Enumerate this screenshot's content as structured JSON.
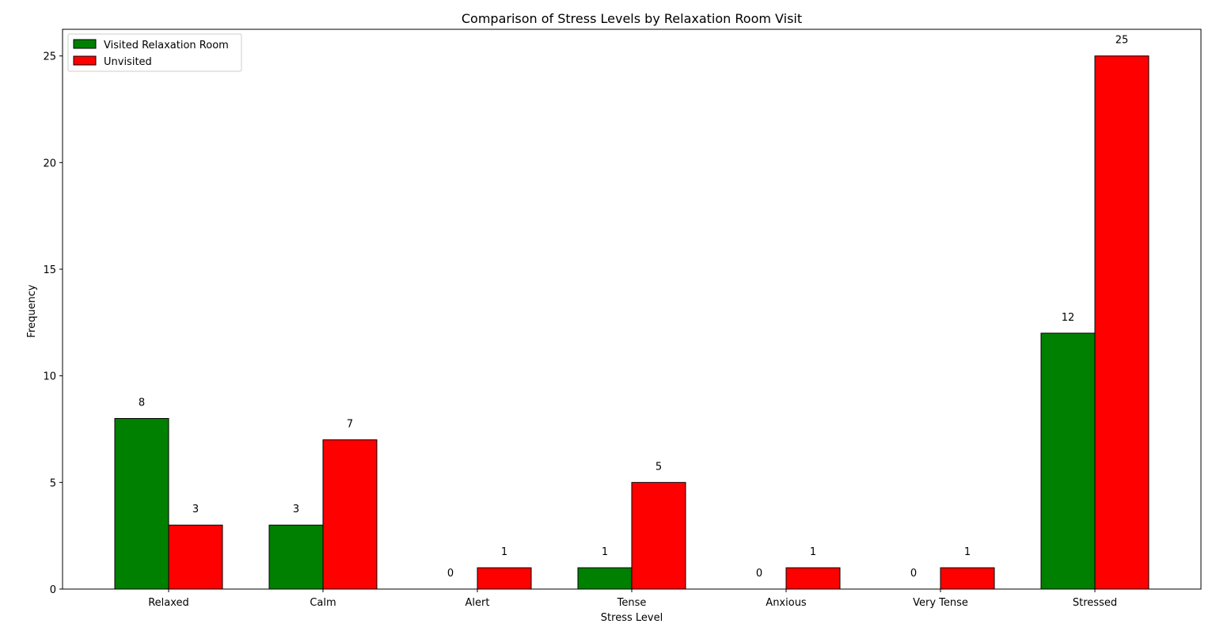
{
  "chart_data": {
    "type": "bar",
    "title": "Comparison of Stress Levels by Relaxation Room Visit",
    "xlabel": "Stress Level",
    "ylabel": "Frequency",
    "categories": [
      "Relaxed",
      "Calm",
      "Alert",
      "Tense",
      "Anxious",
      "Very Tense",
      "Stressed"
    ],
    "series": [
      {
        "name": "Visited Relaxation Room",
        "color": "#008000",
        "values": [
          8,
          3,
          0,
          1,
          0,
          0,
          12
        ]
      },
      {
        "name": "Unvisited",
        "color": "#ff0000",
        "values": [
          3,
          7,
          1,
          5,
          1,
          1,
          25
        ]
      }
    ],
    "ylim": [
      0,
      26.25
    ],
    "yticks": [
      "0",
      "5",
      "10",
      "15",
      "20",
      "25"
    ],
    "legend": "top-left",
    "grid": false,
    "bar_edge_color": "#000000"
  }
}
